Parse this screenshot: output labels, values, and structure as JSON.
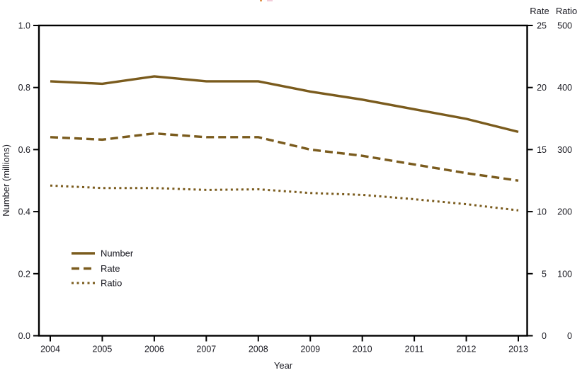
{
  "chart_data": {
    "type": "line",
    "title": "",
    "xlabel": "Year",
    "ylabel_left": "Number (millions)",
    "right_axis_headers": [
      "Rate",
      "Ratio"
    ],
    "x": [
      2004,
      2005,
      2006,
      2007,
      2008,
      2009,
      2010,
      2011,
      2012,
      2013
    ],
    "y_left": {
      "label": "Number (millions)",
      "ticks": [
        "0.0",
        "0.2",
        "0.4",
        "0.6",
        "0.8",
        "1.0"
      ],
      "range": [
        0,
        1
      ]
    },
    "y_rate": {
      "label": "Rate",
      "ticks": [
        "0",
        "5",
        "10",
        "15",
        "20",
        "25"
      ],
      "range": [
        0,
        25
      ]
    },
    "y_ratio": {
      "label": "Ratio",
      "ticks": [
        "0",
        "100",
        "200",
        "300",
        "400",
        "500"
      ],
      "range": [
        0,
        500
      ]
    },
    "series": [
      {
        "name": "Number",
        "axis": "left",
        "style": "solid",
        "values": [
          0.82,
          0.812,
          0.836,
          0.82,
          0.82,
          0.787,
          0.761,
          0.73,
          0.699,
          0.657
        ]
      },
      {
        "name": "Rate",
        "axis": "rate",
        "style": "dashed",
        "values": [
          16.0,
          15.8,
          16.3,
          16.0,
          16.0,
          15.0,
          14.5,
          13.8,
          13.1,
          12.5
        ]
      },
      {
        "name": "Ratio",
        "axis": "ratio",
        "style": "dotted",
        "values": [
          242,
          238,
          238,
          235,
          236,
          230,
          227,
          220,
          212,
          202
        ]
      }
    ],
    "legend_position": "lower-left inside plot",
    "grid": false,
    "line_color": "#7a5b1d",
    "axis_color": "#000000",
    "text_color": "#1a1a22"
  }
}
